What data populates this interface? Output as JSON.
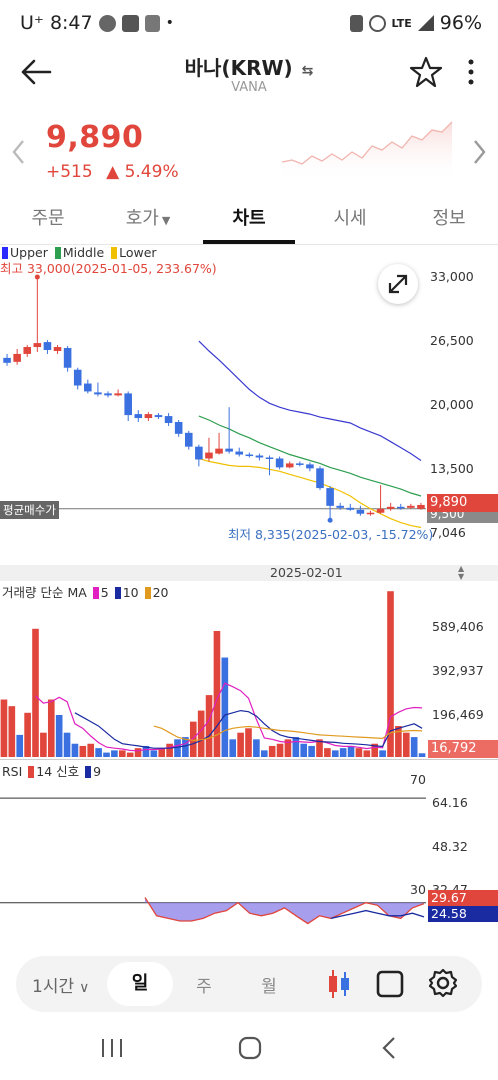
{
  "status_bar": {
    "carrier": "U⁺",
    "time": "8:47",
    "dot": "•",
    "network": "LTE",
    "battery": "96%"
  },
  "header": {
    "title": "바나(KRW)",
    "symbol": "VANA"
  },
  "price": {
    "current": "9,890",
    "change": "+515",
    "change_pct": "▲ 5.49%",
    "color_up": "#e0463b"
  },
  "tabs": [
    {
      "label": "주문"
    },
    {
      "label": "호가"
    },
    {
      "label": "차트"
    },
    {
      "label": "시세"
    },
    {
      "label": "정보"
    }
  ],
  "main_chart": {
    "legend": [
      "Upper",
      "Middle",
      "Lower"
    ],
    "legend_colors": [
      "#2a2aff",
      "#2e9e4f",
      "#f0c000"
    ],
    "high_label": "최고 33,000(2025-01-05, 233.67%)",
    "low_label": "최저 8,335(2025-02-03, -15.72%)",
    "avg_label": "평균매수가",
    "y_ticks": [
      "33,000",
      "26,500",
      "20,000",
      "13,500",
      "7,046"
    ],
    "current_tag": "9,890",
    "avg_tag": "9,500"
  },
  "date_label": "2025-02-01",
  "volume_chart": {
    "legend_title": "거래량 단순 MA",
    "ma": [
      {
        "label": "5",
        "color": "#e020c0"
      },
      {
        "label": "10",
        "color": "#1a2aa0"
      },
      {
        "label": "20",
        "color": "#e09a20"
      }
    ],
    "y_ticks": [
      "589,406",
      "392,937",
      "196,469"
    ],
    "current_tag": "16,792"
  },
  "rsi_chart": {
    "legend_title": "RSI",
    "params": [
      {
        "label": "14 신호",
        "color": "#e0463b"
      },
      {
        "label": "9",
        "color": "#1a2aa0"
      }
    ],
    "level_high": "70",
    "level_low": "30",
    "y_ticks": [
      "64.16",
      "48.32",
      "32.47"
    ],
    "rsi_tag": "29.67",
    "signal_tag": "24.58"
  },
  "bottom_bar": {
    "interval": "1시간",
    "day": "일",
    "week": "주",
    "month": "월"
  },
  "chart_data": [
    {
      "type": "candlestick",
      "title": "",
      "ylim": [
        7046,
        33000
      ],
      "overlays": [
        "Upper",
        "Middle",
        "Lower"
      ],
      "high": 33000,
      "low": 8335,
      "current": 9890,
      "candles": [
        {
          "o": 24800,
          "c": 24300,
          "h": 25200,
          "l": 24000
        },
        {
          "o": 24400,
          "c": 25200,
          "h": 25700,
          "l": 24100
        },
        {
          "o": 25200,
          "c": 25900,
          "h": 26100,
          "l": 24900
        },
        {
          "o": 25900,
          "c": 26300,
          "h": 33000,
          "l": 25400
        },
        {
          "o": 26400,
          "c": 25600,
          "h": 26600,
          "l": 25200
        },
        {
          "o": 25500,
          "c": 25900,
          "h": 26100,
          "l": 25200
        },
        {
          "o": 25800,
          "c": 23800,
          "h": 26000,
          "l": 23400
        },
        {
          "o": 23600,
          "c": 22000,
          "h": 23800,
          "l": 21600
        },
        {
          "o": 22200,
          "c": 21400,
          "h": 22600,
          "l": 21200
        },
        {
          "o": 21300,
          "c": 21100,
          "h": 22300,
          "l": 20900
        },
        {
          "o": 21200,
          "c": 21000,
          "h": 21400,
          "l": 20800
        },
        {
          "o": 21000,
          "c": 21200,
          "h": 21600,
          "l": 20900
        },
        {
          "o": 21200,
          "c": 19000,
          "h": 21400,
          "l": 18400
        },
        {
          "o": 19100,
          "c": 18700,
          "h": 19500,
          "l": 18300
        },
        {
          "o": 18700,
          "c": 19100,
          "h": 19300,
          "l": 18400
        },
        {
          "o": 19000,
          "c": 18800,
          "h": 19200,
          "l": 18600
        },
        {
          "o": 18900,
          "c": 18200,
          "h": 19200,
          "l": 17900
        },
        {
          "o": 18300,
          "c": 17100,
          "h": 18500,
          "l": 16800
        },
        {
          "o": 17200,
          "c": 15800,
          "h": 17400,
          "l": 15500
        },
        {
          "o": 15800,
          "c": 14500,
          "h": 16000,
          "l": 13800
        },
        {
          "o": 14600,
          "c": 15200,
          "h": 16700,
          "l": 14300
        },
        {
          "o": 15100,
          "c": 15600,
          "h": 17200,
          "l": 15000
        },
        {
          "o": 15600,
          "c": 15300,
          "h": 19800,
          "l": 15100
        },
        {
          "o": 15300,
          "c": 15000,
          "h": 15700,
          "l": 14800
        },
        {
          "o": 15000,
          "c": 14900,
          "h": 15200,
          "l": 14700
        },
        {
          "o": 14900,
          "c": 14700,
          "h": 15100,
          "l": 14400
        },
        {
          "o": 14700,
          "c": 14600,
          "h": 14900,
          "l": 12900
        },
        {
          "o": 14600,
          "c": 13700,
          "h": 14800,
          "l": 13500
        },
        {
          "o": 13700,
          "c": 14100,
          "h": 14300,
          "l": 13600
        },
        {
          "o": 14100,
          "c": 14000,
          "h": 14300,
          "l": 13800
        },
        {
          "o": 14000,
          "c": 13600,
          "h": 14200,
          "l": 13300
        },
        {
          "o": 13600,
          "c": 11600,
          "h": 13800,
          "l": 11400
        },
        {
          "o": 11600,
          "c": 9800,
          "h": 11800,
          "l": 8335
        },
        {
          "o": 9800,
          "c": 9600,
          "h": 10100,
          "l": 9400
        },
        {
          "o": 9600,
          "c": 9400,
          "h": 10000,
          "l": 9300
        },
        {
          "o": 9400,
          "c": 9000,
          "h": 9800,
          "l": 8800
        },
        {
          "o": 9000,
          "c": 9100,
          "h": 9300,
          "l": 8800
        },
        {
          "o": 9100,
          "c": 9500,
          "h": 11900,
          "l": 9000
        },
        {
          "o": 9500,
          "c": 9700,
          "h": 10100,
          "l": 9300
        },
        {
          "o": 9700,
          "c": 9600,
          "h": 10000,
          "l": 9400
        },
        {
          "o": 9600,
          "c": 9800,
          "h": 10000,
          "l": 9500
        },
        {
          "o": 9500,
          "c": 9890,
          "h": 10100,
          "l": 9400
        }
      ],
      "bollinger": {
        "start_index": 19,
        "upper": [
          26500,
          25500,
          24600,
          23600,
          22600,
          21600,
          20800,
          20200,
          19800,
          19500,
          19300,
          19100,
          18800,
          18600,
          18400,
          18200,
          17700,
          17300,
          16900,
          16300,
          15700,
          15100,
          14400
        ],
        "middle": [
          18900,
          18500,
          18000,
          17600,
          17100,
          16700,
          16200,
          15800,
          15400,
          15000,
          14700,
          14400,
          14100,
          13700,
          13400,
          13100,
          12700,
          12400,
          12100,
          11800,
          11500,
          11100,
          10800
        ],
        "lower": [
          14600,
          14300,
          14100,
          13900,
          13800,
          13800,
          13700,
          13500,
          13300,
          13000,
          12700,
          12400,
          12100,
          11700,
          11300,
          10800,
          10100,
          9500,
          9000,
          8500,
          8100,
          7800,
          7600
        ]
      }
    },
    {
      "type": "bar",
      "title": "",
      "ylim": [
        0,
        760000
      ],
      "series": [
        {
          "name": "거래량",
          "values": [
            260000,
            230000,
            100000,
            200000,
            580000,
            110000,
            260000,
            190000,
            110000,
            60000,
            50000,
            60000,
            40000,
            20000,
            30000,
            30000,
            20000,
            40000,
            50000,
            30000,
            40000,
            60000,
            80000,
            90000,
            160000,
            210000,
            280000,
            570000,
            450000,
            80000,
            110000,
            130000,
            80000,
            30000,
            50000,
            60000,
            80000,
            90000,
            60000,
            50000,
            80000,
            40000,
            30000,
            40000,
            50000,
            40000,
            30000,
            60000,
            30000,
            750000,
            140000,
            110000,
            90000,
            16792
          ]
        }
      ],
      "ma": {
        "5": [
          null,
          null,
          null,
          null,
          276000,
          244000,
          250000,
          270000,
          250000,
          150000,
          130000,
          95000,
          65000,
          45000,
          40000,
          36000,
          30000,
          28000,
          34000,
          34000,
          36000,
          44000,
          52000,
          60000,
          86000,
          120000,
          166000,
          262000,
          334000,
          318000,
          300000,
          266000,
          170000,
          86000,
          80000,
          70000,
          66000,
          70000,
          68000,
          66000,
          72000,
          64000,
          52000,
          48000,
          48000,
          44000,
          38000,
          44000,
          42000,
          182000,
          202000,
          218000,
          224000,
          222000
        ],
        "10": [
          null,
          null,
          null,
          null,
          null,
          null,
          null,
          null,
          null,
          200000,
          180000,
          160000,
          140000,
          110000,
          80000,
          60000,
          55000,
          50000,
          45000,
          40000,
          40000,
          40000,
          45000,
          50000,
          60000,
          75000,
          95000,
          140000,
          190000,
          200000,
          210000,
          205000,
          185000,
          150000,
          120000,
          100000,
          90000,
          85000,
          80000,
          75000,
          70000,
          68000,
          66000,
          62000,
          60000,
          58000,
          55000,
          50000,
          48000,
          118000,
          130000,
          140000,
          150000,
          130000
        ],
        "20": [
          null,
          null,
          null,
          null,
          null,
          null,
          null,
          null,
          null,
          null,
          null,
          null,
          null,
          null,
          null,
          null,
          null,
          null,
          null,
          140000,
          130000,
          110000,
          90000,
          80000,
          75000,
          78000,
          85000,
          100000,
          120000,
          130000,
          135000,
          138000,
          135000,
          130000,
          125000,
          120000,
          118000,
          115000,
          110000,
          105000,
          100000,
          98000,
          96000,
          94000,
          92000,
          90000,
          88000,
          86000,
          84000,
          110000,
          115000,
          118000,
          120000,
          118000
        ]
      }
    },
    {
      "type": "line",
      "title": "",
      "ylim": [
        16.5,
        80
      ],
      "series": [
        {
          "name": "RSI 14",
          "values": [
            32,
            25,
            24,
            23,
            23,
            24,
            26,
            27,
            30,
            26,
            25,
            26,
            28,
            25,
            22,
            25,
            24,
            26,
            28,
            30,
            29,
            25,
            24,
            28,
            29.67
          ]
        },
        {
          "name": "신호 9",
          "values": [
            null,
            null,
            null,
            null,
            null,
            null,
            null,
            null,
            null,
            null,
            null,
            null,
            null,
            null,
            null,
            null,
            24,
            25,
            26,
            27,
            26,
            25,
            25,
            26,
            24.58
          ]
        }
      ],
      "levels": [
        70,
        30
      ]
    }
  ]
}
